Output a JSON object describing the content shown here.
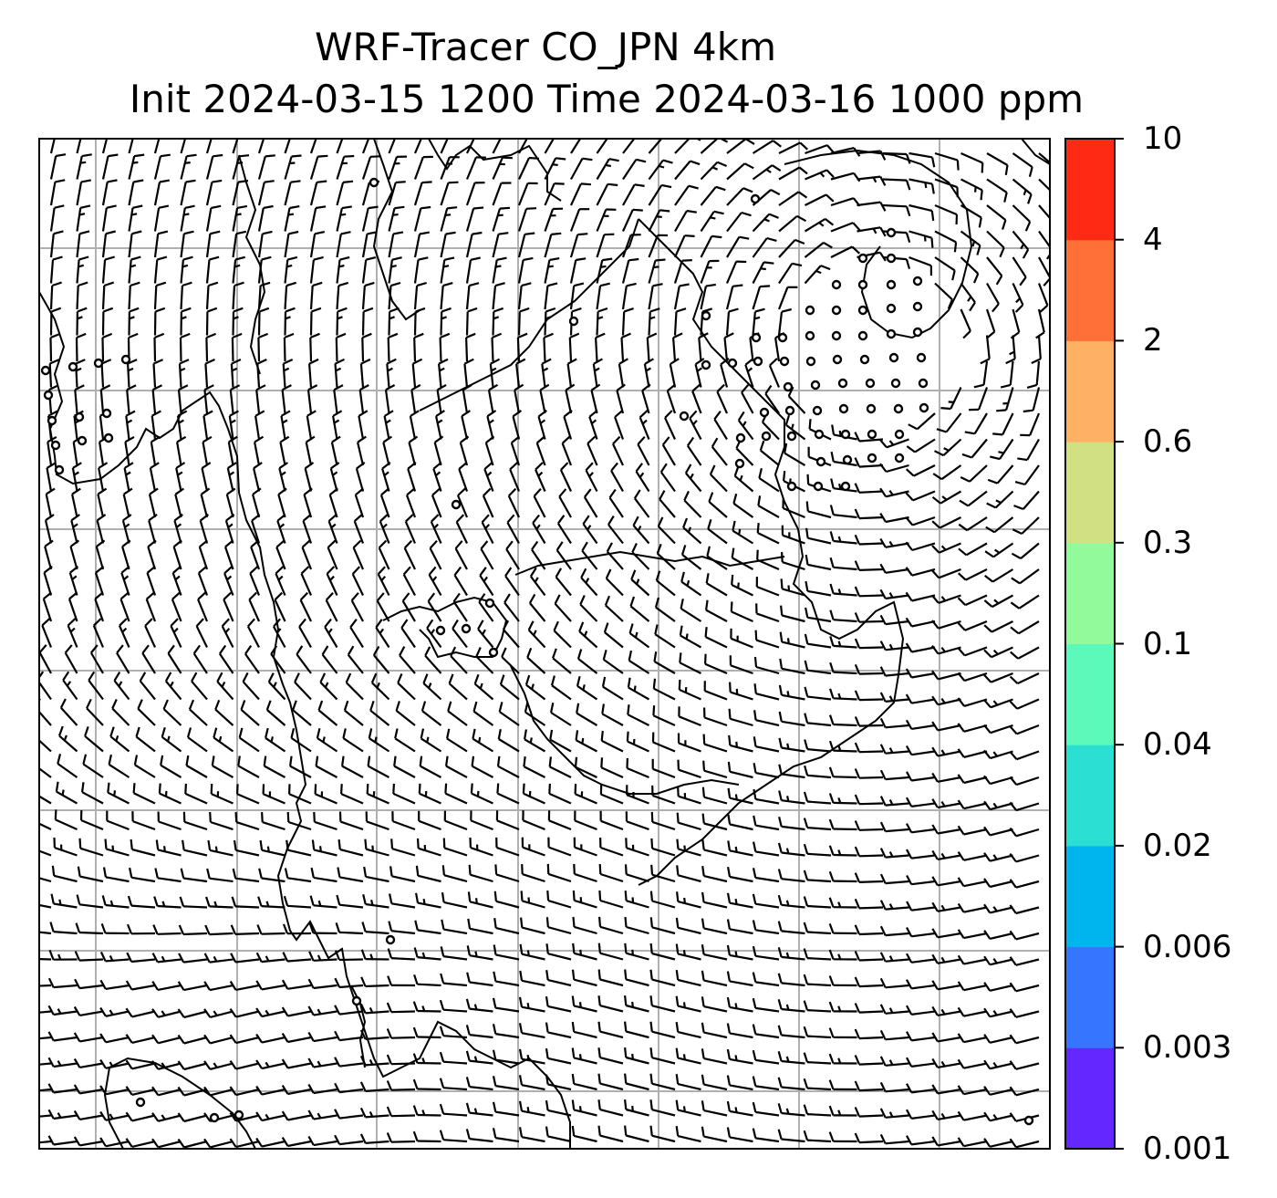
{
  "title": {
    "line1": "WRF-Tracer CO_JPN 4km",
    "line2": "Init 2024-03-15 1200 Time 2024-03-16 1000 ppm"
  },
  "colorbar": {
    "tick_labels": [
      "0.001",
      "0.003",
      "0.006",
      "0.02",
      "0.04",
      "0.1",
      "0.3",
      "0.6",
      "2",
      "4",
      "10"
    ],
    "colors": [
      "#6527ff",
      "#3575ff",
      "#00b4ee",
      "#2cdfd3",
      "#5cfaba",
      "#93fa9c",
      "#d2e084",
      "#feb064",
      "#ff6f38",
      "#ff2a13"
    ]
  },
  "map": {
    "gridlines": true,
    "wind_barbs": true,
    "calm_marker": "circle"
  }
}
